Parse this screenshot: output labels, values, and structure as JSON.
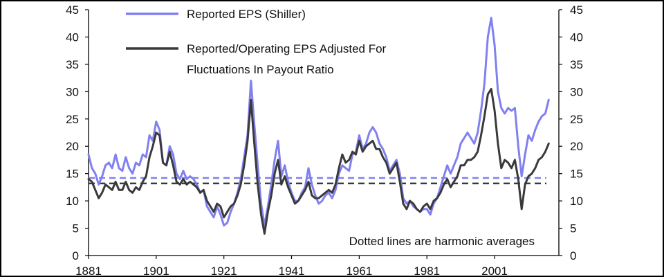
{
  "chart_data": {
    "type": "line",
    "title": "",
    "xlabel": "",
    "ylabel": "",
    "ylim": [
      0,
      45
    ],
    "y2lim": [
      0,
      45
    ],
    "xlim": [
      1881,
      2020
    ],
    "x_ticks": [
      "1881",
      "1901",
      "1921",
      "1941",
      "1961",
      "1981",
      "2001"
    ],
    "y_ticks": [
      "0",
      "5",
      "10",
      "15",
      "20",
      "25",
      "30",
      "35",
      "40",
      "45"
    ],
    "legend_placement": "top-center",
    "annotation": "Dotted lines are harmonic averages",
    "series": [
      {
        "name": "Reported EPS (Shiller)",
        "color": "#8080f0",
        "values": [
          [
            1881,
            18.5
          ],
          [
            1882,
            16.0
          ],
          [
            1883,
            15.0
          ],
          [
            1884,
            13.0
          ],
          [
            1885,
            14.5
          ],
          [
            1886,
            16.5
          ],
          [
            1887,
            17.0
          ],
          [
            1888,
            16.0
          ],
          [
            1889,
            18.5
          ],
          [
            1890,
            16.0
          ],
          [
            1891,
            15.5
          ],
          [
            1892,
            18.0
          ],
          [
            1893,
            16.0
          ],
          [
            1894,
            15.0
          ],
          [
            1895,
            17.0
          ],
          [
            1896,
            16.5
          ],
          [
            1897,
            18.5
          ],
          [
            1898,
            18.0
          ],
          [
            1899,
            22.0
          ],
          [
            1900,
            21.0
          ],
          [
            1901,
            24.5
          ],
          [
            1902,
            23.0
          ],
          [
            1903,
            17.0
          ],
          [
            1904,
            16.5
          ],
          [
            1905,
            20.0
          ],
          [
            1906,
            18.5
          ],
          [
            1907,
            15.0
          ],
          [
            1908,
            14.0
          ],
          [
            1909,
            15.5
          ],
          [
            1910,
            14.0
          ],
          [
            1911,
            14.5
          ],
          [
            1912,
            14.0
          ],
          [
            1913,
            13.0
          ],
          [
            1914,
            11.5
          ],
          [
            1915,
            12.0
          ],
          [
            1916,
            9.0
          ],
          [
            1917,
            8.0
          ],
          [
            1918,
            7.0
          ],
          [
            1919,
            9.0
          ],
          [
            1920,
            7.5
          ],
          [
            1921,
            5.5
          ],
          [
            1922,
            6.0
          ],
          [
            1923,
            8.0
          ],
          [
            1924,
            9.5
          ],
          [
            1925,
            11.5
          ],
          [
            1926,
            14.0
          ],
          [
            1927,
            18.0
          ],
          [
            1928,
            22.0
          ],
          [
            1929,
            32.0
          ],
          [
            1930,
            24.0
          ],
          [
            1931,
            16.5
          ],
          [
            1932,
            9.5
          ],
          [
            1933,
            5.5
          ],
          [
            1934,
            9.0
          ],
          [
            1935,
            13.0
          ],
          [
            1936,
            17.5
          ],
          [
            1937,
            21.0
          ],
          [
            1938,
            14.5
          ],
          [
            1939,
            16.5
          ],
          [
            1940,
            13.5
          ],
          [
            1941,
            11.5
          ],
          [
            1942,
            10.0
          ],
          [
            1943,
            10.0
          ],
          [
            1944,
            11.5
          ],
          [
            1945,
            12.5
          ],
          [
            1946,
            16.0
          ],
          [
            1947,
            13.0
          ],
          [
            1948,
            11.0
          ],
          [
            1949,
            9.5
          ],
          [
            1950,
            10.0
          ],
          [
            1951,
            11.0
          ],
          [
            1952,
            11.5
          ],
          [
            1953,
            10.5
          ],
          [
            1954,
            12.0
          ],
          [
            1955,
            15.0
          ],
          [
            1956,
            16.5
          ],
          [
            1957,
            16.0
          ],
          [
            1958,
            15.5
          ],
          [
            1959,
            18.5
          ],
          [
            1960,
            19.0
          ],
          [
            1961,
            22.0
          ],
          [
            1962,
            19.5
          ],
          [
            1963,
            20.5
          ],
          [
            1964,
            22.5
          ],
          [
            1965,
            23.5
          ],
          [
            1966,
            22.5
          ],
          [
            1967,
            20.5
          ],
          [
            1968,
            19.5
          ],
          [
            1969,
            18.0
          ],
          [
            1970,
            15.5
          ],
          [
            1971,
            16.5
          ],
          [
            1972,
            17.5
          ],
          [
            1973,
            15.0
          ],
          [
            1974,
            10.5
          ],
          [
            1975,
            9.5
          ],
          [
            1976,
            10.0
          ],
          [
            1977,
            9.0
          ],
          [
            1978,
            8.5
          ],
          [
            1979,
            8.0
          ],
          [
            1980,
            8.5
          ],
          [
            1981,
            8.5
          ],
          [
            1982,
            7.5
          ],
          [
            1983,
            9.5
          ],
          [
            1984,
            10.5
          ],
          [
            1985,
            12.5
          ],
          [
            1986,
            14.5
          ],
          [
            1987,
            16.5
          ],
          [
            1988,
            15.0
          ],
          [
            1989,
            16.5
          ],
          [
            1990,
            18.0
          ],
          [
            1991,
            20.5
          ],
          [
            1992,
            21.5
          ],
          [
            1993,
            22.5
          ],
          [
            1994,
            21.5
          ],
          [
            1995,
            20.5
          ],
          [
            1996,
            22.5
          ],
          [
            1997,
            26.5
          ],
          [
            1998,
            31.5
          ],
          [
            1999,
            40.0
          ],
          [
            2000,
            43.5
          ],
          [
            2001,
            38.5
          ],
          [
            2002,
            30.0
          ],
          [
            2003,
            27.0
          ],
          [
            2004,
            26.0
          ],
          [
            2005,
            27.0
          ],
          [
            2006,
            26.5
          ],
          [
            2007,
            27.0
          ],
          [
            2008,
            20.0
          ],
          [
            2009,
            14.5
          ],
          [
            2010,
            18.5
          ],
          [
            2011,
            22.0
          ],
          [
            2012,
            21.0
          ],
          [
            2013,
            23.0
          ],
          [
            2014,
            24.5
          ],
          [
            2015,
            25.5
          ],
          [
            2016,
            26.0
          ],
          [
            2017,
            28.5
          ]
        ]
      },
      {
        "name": "Reported/Operating EPS Adjusted For Fluctuations In Payout Ratio",
        "color": "#3a3a3c",
        "values": [
          [
            1881,
            14.0
          ],
          [
            1882,
            13.5
          ],
          [
            1883,
            12.0
          ],
          [
            1884,
            10.5
          ],
          [
            1885,
            11.5
          ],
          [
            1886,
            13.0
          ],
          [
            1887,
            12.5
          ],
          [
            1888,
            12.0
          ],
          [
            1889,
            13.5
          ],
          [
            1890,
            12.0
          ],
          [
            1891,
            12.0
          ],
          [
            1892,
            13.5
          ],
          [
            1893,
            12.0
          ],
          [
            1894,
            11.5
          ],
          [
            1895,
            12.5
          ],
          [
            1896,
            12.0
          ],
          [
            1897,
            13.5
          ],
          [
            1898,
            14.5
          ],
          [
            1899,
            18.0
          ],
          [
            1900,
            20.0
          ],
          [
            1901,
            22.5
          ],
          [
            1902,
            22.0
          ],
          [
            1903,
            17.0
          ],
          [
            1904,
            16.5
          ],
          [
            1905,
            19.0
          ],
          [
            1906,
            16.5
          ],
          [
            1907,
            13.5
          ],
          [
            1908,
            13.0
          ],
          [
            1909,
            14.0
          ],
          [
            1910,
            13.0
          ],
          [
            1911,
            13.5
          ],
          [
            1912,
            13.0
          ],
          [
            1913,
            12.5
          ],
          [
            1914,
            11.5
          ],
          [
            1915,
            12.0
          ],
          [
            1916,
            10.0
          ],
          [
            1917,
            9.0
          ],
          [
            1918,
            8.0
          ],
          [
            1919,
            9.5
          ],
          [
            1920,
            9.0
          ],
          [
            1921,
            7.0
          ],
          [
            1922,
            8.0
          ],
          [
            1923,
            9.0
          ],
          [
            1924,
            9.5
          ],
          [
            1925,
            11.0
          ],
          [
            1926,
            13.0
          ],
          [
            1927,
            16.5
          ],
          [
            1928,
            21.0
          ],
          [
            1929,
            28.5
          ],
          [
            1930,
            20.5
          ],
          [
            1931,
            13.0
          ],
          [
            1932,
            7.5
          ],
          [
            1933,
            4.0
          ],
          [
            1934,
            8.0
          ],
          [
            1935,
            11.0
          ],
          [
            1936,
            15.0
          ],
          [
            1937,
            17.5
          ],
          [
            1938,
            13.0
          ],
          [
            1939,
            14.5
          ],
          [
            1940,
            12.5
          ],
          [
            1941,
            11.0
          ],
          [
            1942,
            9.5
          ],
          [
            1943,
            10.0
          ],
          [
            1944,
            11.0
          ],
          [
            1945,
            12.0
          ],
          [
            1946,
            13.5
          ],
          [
            1947,
            11.0
          ],
          [
            1948,
            10.5
          ],
          [
            1949,
            10.5
          ],
          [
            1950,
            11.0
          ],
          [
            1951,
            11.5
          ],
          [
            1952,
            12.0
          ],
          [
            1953,
            11.5
          ],
          [
            1954,
            13.0
          ],
          [
            1955,
            16.0
          ],
          [
            1956,
            18.5
          ],
          [
            1957,
            17.0
          ],
          [
            1958,
            17.5
          ],
          [
            1959,
            19.0
          ],
          [
            1960,
            18.5
          ],
          [
            1961,
            21.0
          ],
          [
            1962,
            19.0
          ],
          [
            1963,
            20.0
          ],
          [
            1964,
            20.5
          ],
          [
            1965,
            21.0
          ],
          [
            1966,
            19.5
          ],
          [
            1967,
            19.5
          ],
          [
            1968,
            18.0
          ],
          [
            1969,
            17.0
          ],
          [
            1970,
            15.0
          ],
          [
            1971,
            16.0
          ],
          [
            1972,
            17.0
          ],
          [
            1973,
            13.5
          ],
          [
            1974,
            9.5
          ],
          [
            1975,
            8.5
          ],
          [
            1976,
            10.0
          ],
          [
            1977,
            9.5
          ],
          [
            1978,
            8.5
          ],
          [
            1979,
            8.0
          ],
          [
            1980,
            9.0
          ],
          [
            1981,
            9.5
          ],
          [
            1982,
            8.5
          ],
          [
            1983,
            10.0
          ],
          [
            1984,
            10.5
          ],
          [
            1985,
            11.5
          ],
          [
            1986,
            13.0
          ],
          [
            1987,
            14.0
          ],
          [
            1988,
            12.5
          ],
          [
            1989,
            13.5
          ],
          [
            1990,
            14.5
          ],
          [
            1991,
            16.5
          ],
          [
            1992,
            16.5
          ],
          [
            1993,
            17.5
          ],
          [
            1994,
            17.5
          ],
          [
            1995,
            18.0
          ],
          [
            1996,
            19.0
          ],
          [
            1997,
            22.0
          ],
          [
            1998,
            25.5
          ],
          [
            1999,
            29.5
          ],
          [
            2000,
            30.5
          ],
          [
            2001,
            26.5
          ],
          [
            2002,
            20.5
          ],
          [
            2003,
            16.0
          ],
          [
            2004,
            17.5
          ],
          [
            2005,
            17.0
          ],
          [
            2006,
            16.0
          ],
          [
            2007,
            17.5
          ],
          [
            2008,
            14.0
          ],
          [
            2009,
            8.5
          ],
          [
            2010,
            13.0
          ],
          [
            2011,
            14.5
          ],
          [
            2012,
            15.0
          ],
          [
            2013,
            16.0
          ],
          [
            2014,
            17.5
          ],
          [
            2015,
            18.0
          ],
          [
            2016,
            19.0
          ],
          [
            2017,
            20.5
          ]
        ]
      }
    ],
    "harmonic_averages": [
      {
        "series": "Reported EPS (Shiller)",
        "value": 14.2,
        "color": "#8080f0"
      },
      {
        "series": "Reported/Operating EPS Adjusted For Fluctuations In Payout Ratio",
        "value": 13.2,
        "color": "#3a3a3c"
      }
    ]
  }
}
